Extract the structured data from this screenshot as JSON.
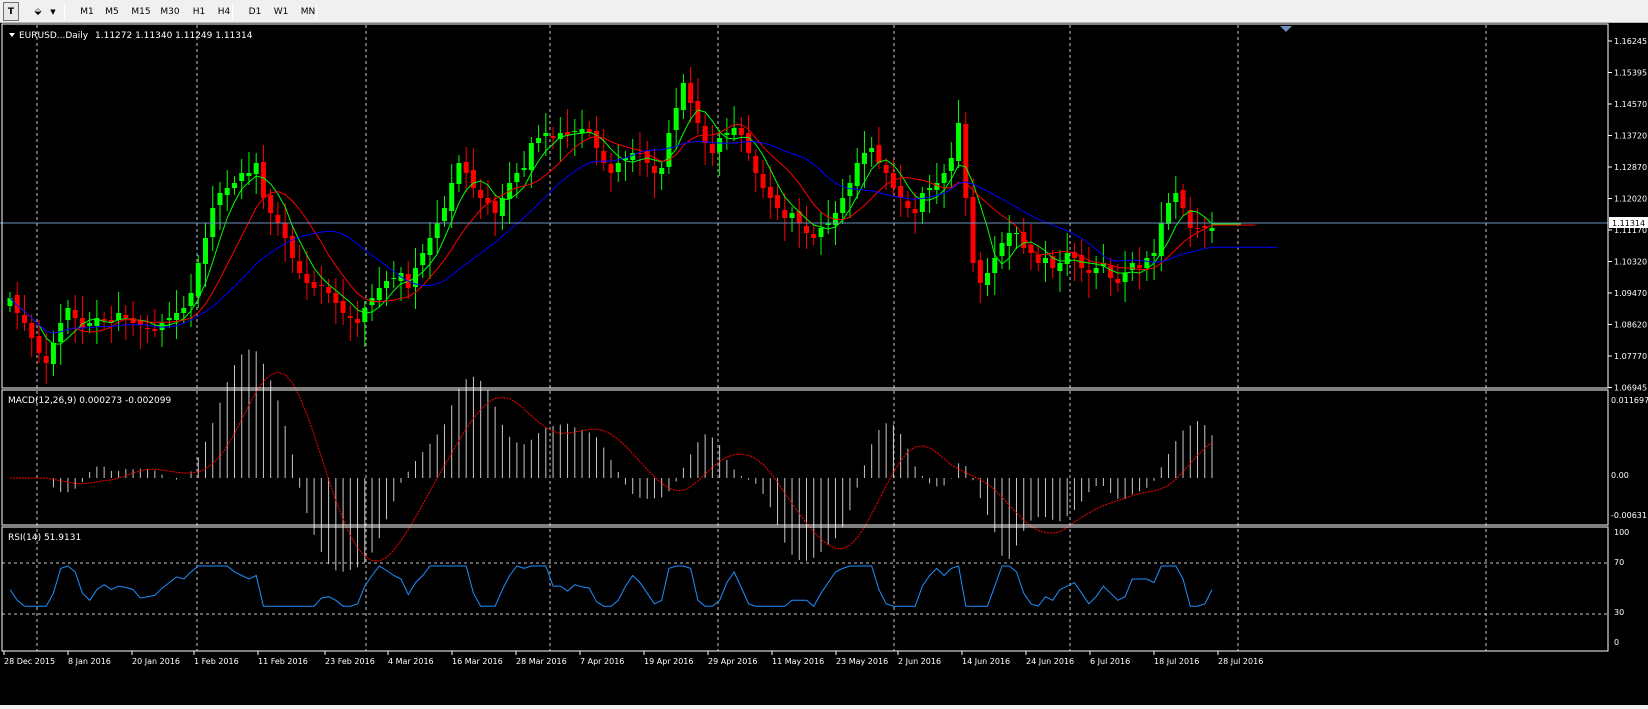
{
  "toolbar": {
    "tools": [
      {
        "name": "text-tool-icon",
        "glyph": "T"
      },
      {
        "name": "objects-tool-icon",
        "glyph": "⬙"
      }
    ],
    "periods": [
      "M1",
      "M5",
      "M15",
      "M30",
      "H1",
      "H4",
      "D1",
      "W1",
      "MN"
    ]
  },
  "main_panel": {
    "symbol_label": "EURUSD...Daily",
    "ohlc": "1.11272 1.11340 1.11249 1.11314",
    "price_ticks": [
      "1.16245",
      "1.15395",
      "1.14570",
      "1.13720",
      "1.12870",
      "1.12020",
      "1.11170",
      "1.10320",
      "1.09470",
      "1.08620",
      "1.07770",
      "1.06945"
    ],
    "current_price": "1.11314"
  },
  "macd_panel": {
    "label": "MACD(12,26,9) 0.000273 -0.002099",
    "ticks": [
      "0.011697",
      "0.00",
      "-0.00631"
    ]
  },
  "rsi_panel": {
    "label": "RSI(14) 51.9131",
    "ticks": [
      "100",
      "70",
      "30",
      "0"
    ]
  },
  "date_axis": [
    "28 Dec 2015",
    "8 Jan 2016",
    "20 Jan 2016",
    "1 Feb 2016",
    "11 Feb 2016",
    "23 Feb 2016",
    "4 Mar 2016",
    "16 Mar 2016",
    "28 Mar 2016",
    "7 Apr 2016",
    "19 Apr 2016",
    "29 Apr 2016",
    "11 May 2016",
    "23 May 2016",
    "2 Jun 2016",
    "14 Jun 2016",
    "24 Jun 2016",
    "6 Jul 2016",
    "18 Jul 2016",
    "28 Jul 2016"
  ],
  "colors": {
    "background": "#000000",
    "bull": "#00ff00",
    "bear": "#ff0000",
    "ma_fast": "#00ff00",
    "ma_mid": "#ff0000",
    "ma_slow": "#0000ff",
    "price_line": "#6d8fbf",
    "rsi": "#1e90ff",
    "macd_signal": "#ff0000",
    "macd_hist": "#c8c8c8",
    "grid": "#c8c8c8"
  }
}
